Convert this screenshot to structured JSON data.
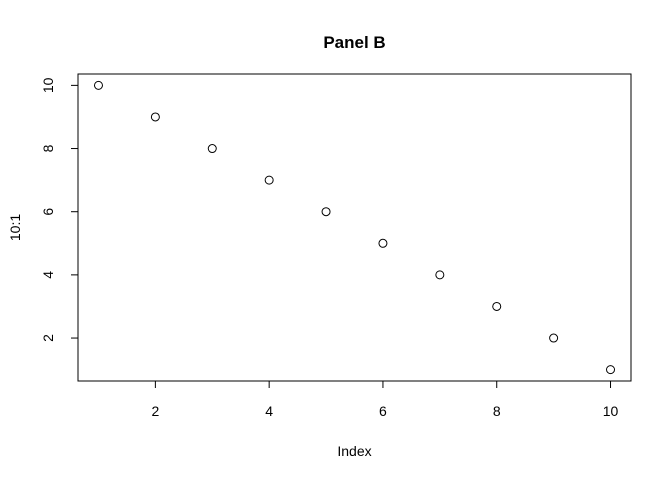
{
  "chart_data": {
    "type": "scatter",
    "title": "Panel B",
    "xlabel": "Index",
    "ylabel": "10:1",
    "x": [
      1,
      2,
      3,
      4,
      5,
      6,
      7,
      8,
      9,
      10
    ],
    "series": [
      {
        "values": [
          10,
          9,
          8,
          7,
          6,
          5,
          4,
          3,
          2,
          1
        ]
      }
    ],
    "xlim": [
      0.64,
      10.36
    ],
    "ylim": [
      0.64,
      10.36
    ],
    "xticks": [
      2,
      4,
      6,
      8,
      10
    ],
    "yticks": [
      2,
      4,
      6,
      8,
      10
    ],
    "marker": "open-circle",
    "grid": false,
    "box": true,
    "colors": {
      "foreground": "#000000",
      "background": "#ffffff"
    }
  }
}
